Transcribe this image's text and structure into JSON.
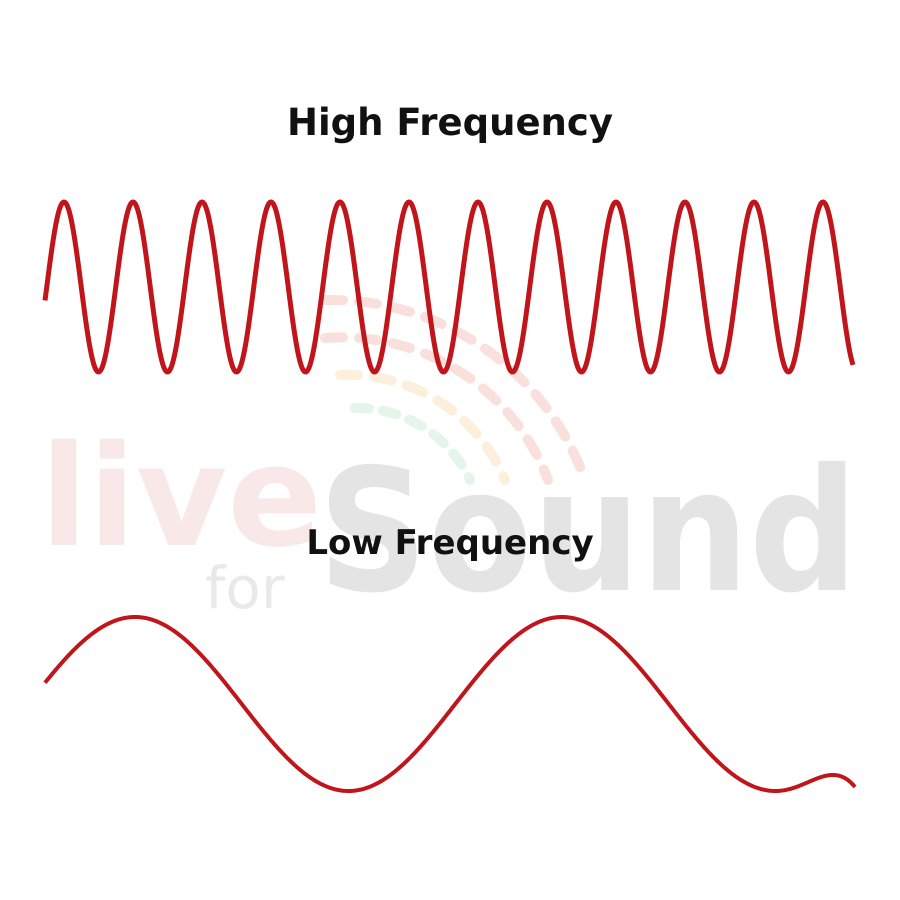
{
  "headings": {
    "high": "High Frequency",
    "low": "Low Frequency"
  },
  "watermark": {
    "word_live": "live",
    "word_for": "for",
    "word_sound": "Sound",
    "color_live": "#e8a8a8",
    "color_sound": "#8a8a8a",
    "arc_colors": [
      "#f2a7a0",
      "#f7d6a0",
      "#f3ef9e",
      "#b9e3c4"
    ]
  },
  "waves": {
    "color": "#c0151b",
    "high": {
      "cycles": 12,
      "label": "High Frequency"
    },
    "low": {
      "cycles": 2,
      "label": "Low Frequency"
    }
  }
}
